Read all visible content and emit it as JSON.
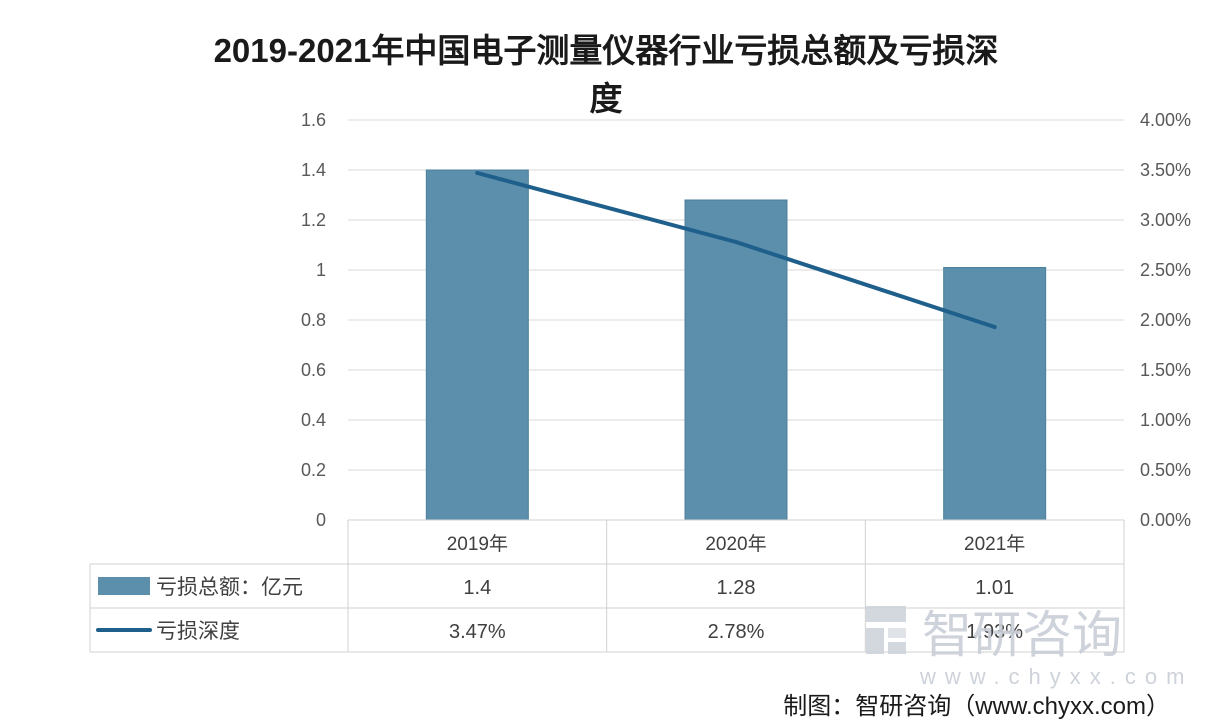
{
  "chart_data": {
    "type": "bar",
    "title": "2019-2021年中国电子测量仪器行业亏损总额及亏损深度",
    "categories": [
      "2019年",
      "2020年",
      "2021年"
    ],
    "series": [
      {
        "name": "亏损总额：亿元",
        "type": "bar",
        "axis": "left",
        "values": [
          1.4,
          1.28,
          1.01
        ],
        "labels": [
          "1.4",
          "1.28",
          "1.01"
        ],
        "color": "#5b8fac"
      },
      {
        "name": "亏损深度",
        "type": "line",
        "axis": "right",
        "values": [
          3.47,
          2.78,
          1.93
        ],
        "labels": [
          "3.47%",
          "2.78%",
          "1.93%"
        ],
        "color": "#1f5f8b"
      }
    ],
    "y_left": {
      "min": 0,
      "max": 1.6,
      "ticks": [
        "0",
        "0.2",
        "0.4",
        "0.6",
        "0.8",
        "1",
        "1.2",
        "1.4",
        "1.6"
      ]
    },
    "y_right": {
      "min": 0,
      "max": 4,
      "ticks": [
        "0.00%",
        "0.50%",
        "1.00%",
        "1.50%",
        "2.00%",
        "2.50%",
        "3.00%",
        "3.50%",
        "4.00%"
      ]
    },
    "grid": true,
    "legend": "data-table",
    "data_table": true
  },
  "watermark": {
    "name": "智研咨询",
    "url": "www.chyxx.com"
  },
  "source_note": "制图：智研咨询（www.chyxx.com）"
}
